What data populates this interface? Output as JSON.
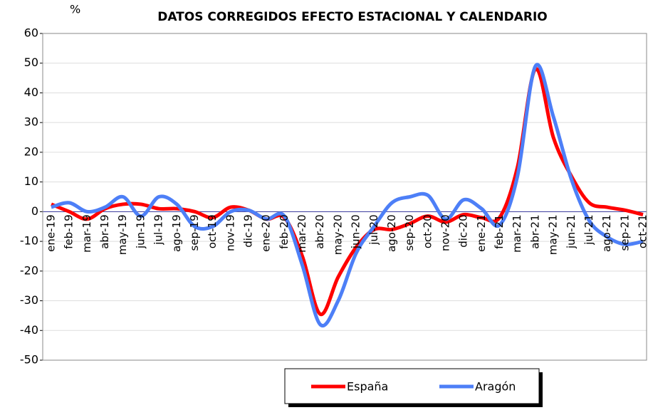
{
  "chart_data": {
    "type": "line",
    "title": "DATOS CORREGIDOS EFECTO ESTACIONAL Y CALENDARIO",
    "y_label": "%",
    "categories": [
      "ene-19",
      "feb-19",
      "mar-19",
      "abr-19",
      "may-19",
      "jun-19",
      "jul-19",
      "ago-19",
      "sep-19",
      "oct-19",
      "nov-19",
      "dic-19",
      "ene-20",
      "feb-20",
      "mar-20",
      "abr-20",
      "may-20",
      "jun-20",
      "jul-20",
      "ago-20",
      "sep-20",
      "oct-20",
      "nov-20",
      "dic-20",
      "ene-21",
      "feb-21",
      "mar-21",
      "abr-21",
      "may-21",
      "jun-21",
      "jul-21",
      "ago-21",
      "sep-21",
      "oct-21"
    ],
    "series": [
      {
        "name": "España",
        "color": "#ff0000",
        "values": [
          2.5,
          0,
          -2.5,
          1,
          2.5,
          2.5,
          1,
          1,
          0,
          -2,
          1.5,
          0.5,
          -2.5,
          -2,
          -15,
          -34.5,
          -22,
          -12,
          -6,
          -6,
          -4,
          -1.5,
          -3.5,
          -1,
          -2,
          -2,
          15,
          48,
          25,
          12,
          3,
          1.5,
          0.5,
          -1
        ]
      },
      {
        "name": "Aragón",
        "color": "#4d7ff7",
        "values": [
          1.5,
          3,
          0,
          1.5,
          5,
          -1.5,
          5,
          2.5,
          -5,
          -5,
          0,
          0.5,
          -2.5,
          -1.5,
          -18,
          -38,
          -30,
          -14,
          -5,
          3,
          5,
          5.5,
          -2.5,
          4,
          1,
          -4.5,
          12,
          49,
          32,
          11,
          -3,
          -8.5,
          -11,
          -10
        ]
      }
    ],
    "ylim": [
      -50,
      60
    ],
    "yticks": [
      -50,
      -40,
      -30,
      -20,
      -10,
      0,
      10,
      20,
      30,
      40,
      50,
      60
    ],
    "grid": true,
    "legend": "bottom"
  }
}
